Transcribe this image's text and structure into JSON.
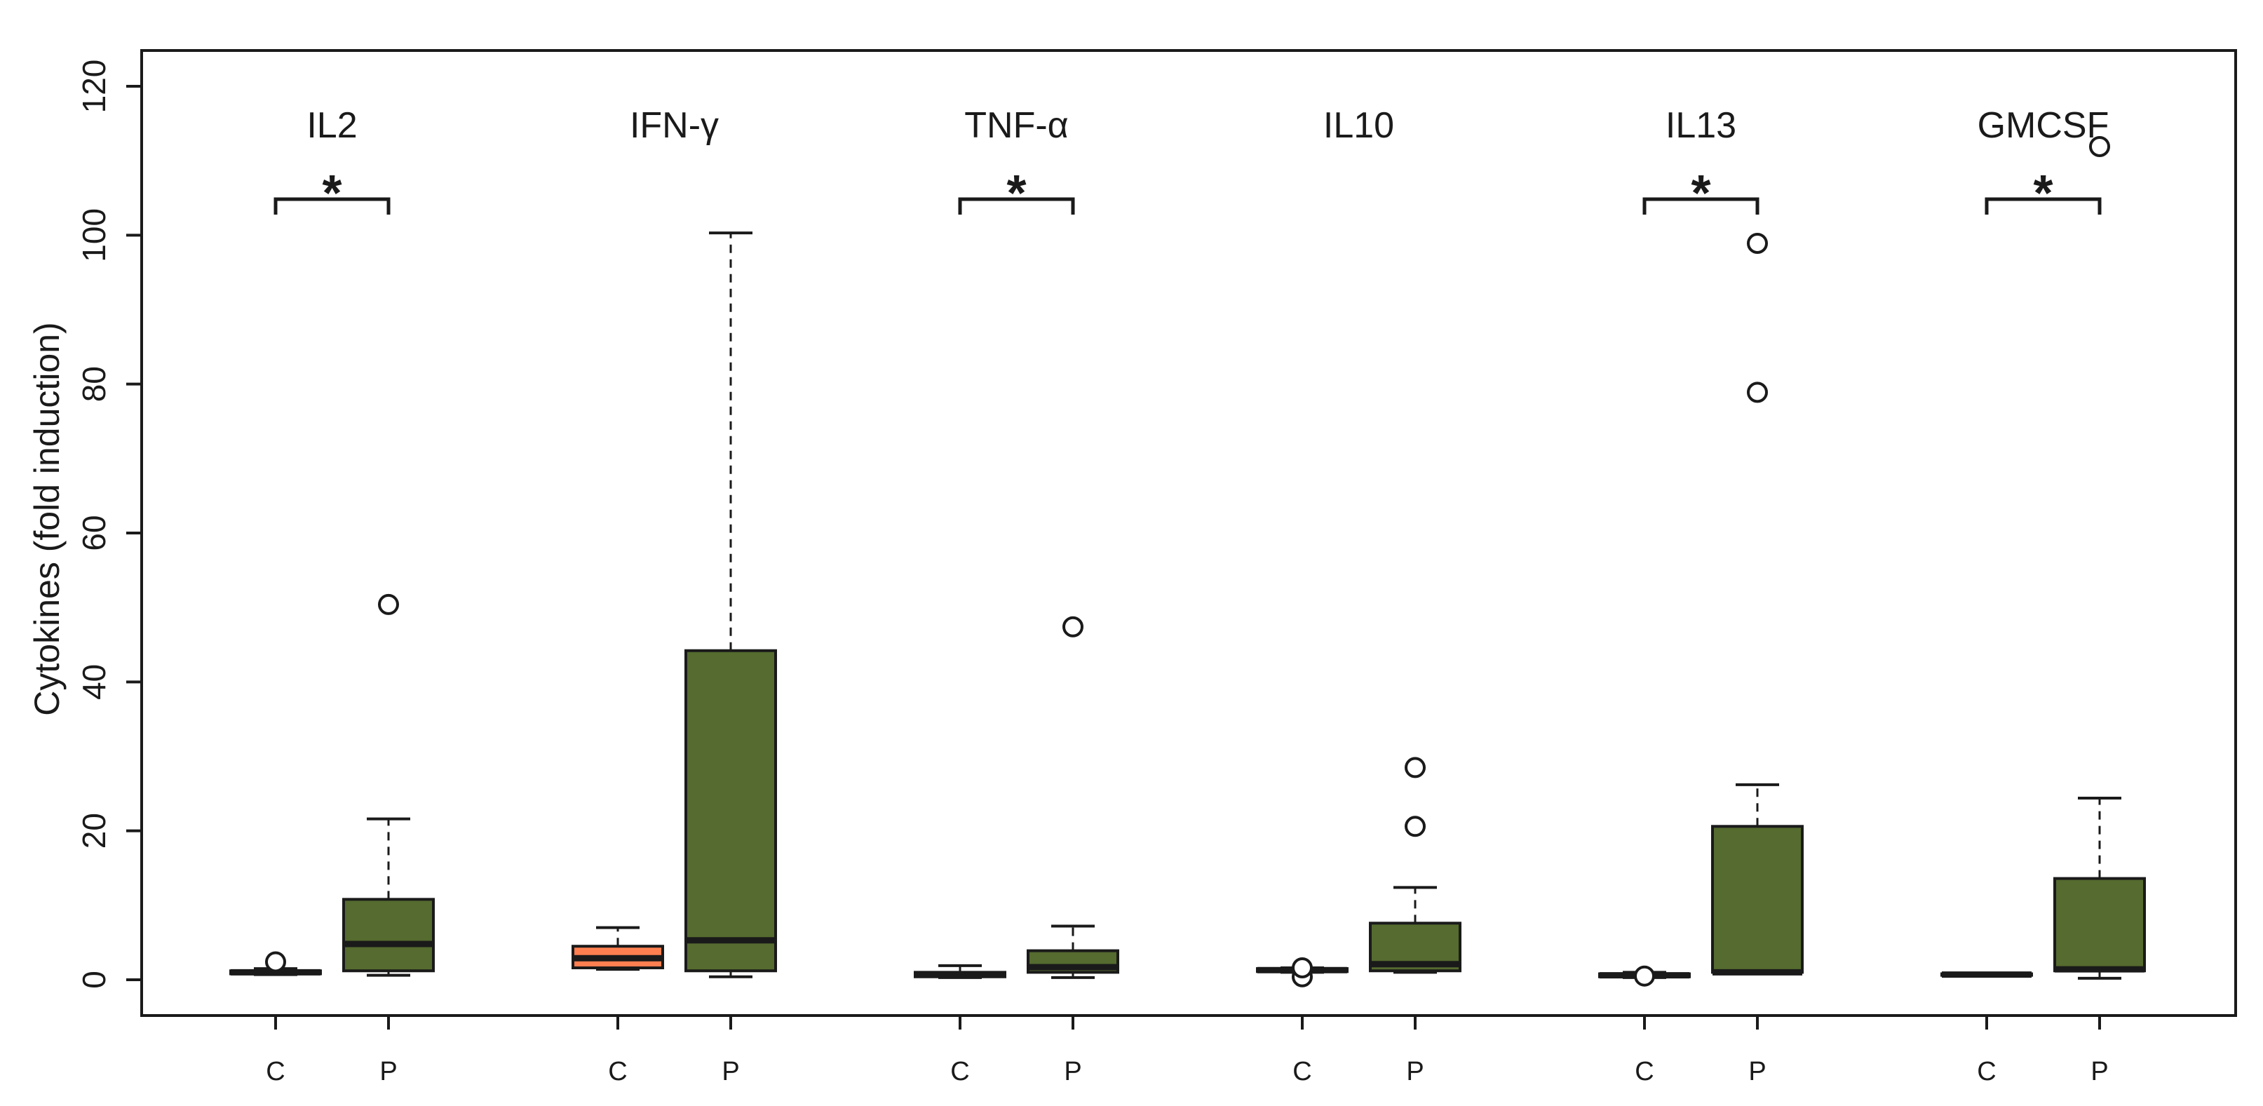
{
  "chart_data": {
    "type": "box",
    "title": "",
    "xlabel": "",
    "ylabel": "Cytokines (fold induction)",
    "ylim": [
      0,
      120
    ],
    "y_ticks": [
      0,
      20,
      40,
      60,
      80,
      100,
      120
    ],
    "grid": false,
    "group_labels": [
      "C",
      "P"
    ],
    "colors": {
      "control_box": "#ff7f50",
      "patient_box": "#556b2f",
      "stroke": "#1a1a1a"
    },
    "panels": [
      {
        "name": "IL2",
        "significant": true,
        "marker": "*",
        "boxes": [
          {
            "group": "C",
            "min": 0.7,
            "q1": 0.8,
            "median": 1.0,
            "q3": 1.2,
            "max": 1.5,
            "outliers": [
              2.4
            ]
          },
          {
            "group": "P",
            "min": 0.6,
            "q1": 1.2,
            "median": 4.8,
            "q3": 10.8,
            "max": 21.6,
            "outliers": [
              50.4
            ]
          }
        ]
      },
      {
        "name": "IFN-γ",
        "significant": false,
        "marker": "",
        "boxes": [
          {
            "group": "C",
            "min": 1.4,
            "q1": 1.6,
            "median": 2.9,
            "q3": 4.5,
            "max": 7.0,
            "outliers": []
          },
          {
            "group": "P",
            "min": 0.4,
            "q1": 1.2,
            "median": 5.3,
            "q3": 44.2,
            "max": 100.3,
            "outliers": []
          }
        ]
      },
      {
        "name": "TNF-α",
        "significant": true,
        "marker": "*",
        "boxes": [
          {
            "group": "C",
            "min": 0.3,
            "q1": 0.4,
            "median": 0.7,
            "q3": 1.0,
            "max": 1.9,
            "outliers": []
          },
          {
            "group": "P",
            "min": 0.3,
            "q1": 1.0,
            "median": 1.7,
            "q3": 3.9,
            "max": 7.2,
            "outliers": [
              47.4
            ]
          }
        ]
      },
      {
        "name": "IL10",
        "significant": false,
        "marker": "",
        "boxes": [
          {
            "group": "C",
            "min": 1.0,
            "q1": 1.1,
            "median": 1.3,
            "q3": 1.5,
            "max": 1.6,
            "outliers": [
              0.4,
              1.6
            ]
          },
          {
            "group": "P",
            "min": 1.0,
            "q1": 1.2,
            "median": 2.1,
            "q3": 7.6,
            "max": 12.4,
            "outliers": [
              20.6,
              28.5
            ]
          }
        ]
      },
      {
        "name": "IL13",
        "significant": true,
        "marker": "*",
        "boxes": [
          {
            "group": "C",
            "min": 0.3,
            "q1": 0.4,
            "median": 0.6,
            "q3": 0.8,
            "max": 1.0,
            "outliers": [
              0.5
            ]
          },
          {
            "group": "P",
            "min": 0.9,
            "q1": 1.0,
            "median": 1.0,
            "q3": 20.6,
            "max": 26.2,
            "outliers": [
              78.9,
              98.9
            ]
          }
        ]
      },
      {
        "name": "GMCSF",
        "significant": true,
        "marker": "*",
        "boxes": [
          {
            "group": "C",
            "min": 0.5,
            "q1": 0.6,
            "median": 0.7,
            "q3": 0.8,
            "max": 0.9,
            "outliers": []
          },
          {
            "group": "P",
            "min": 0.2,
            "q1": 1.2,
            "median": 1.4,
            "q3": 13.6,
            "max": 24.4,
            "outliers": [
              111.9
            ]
          }
        ]
      }
    ]
  }
}
